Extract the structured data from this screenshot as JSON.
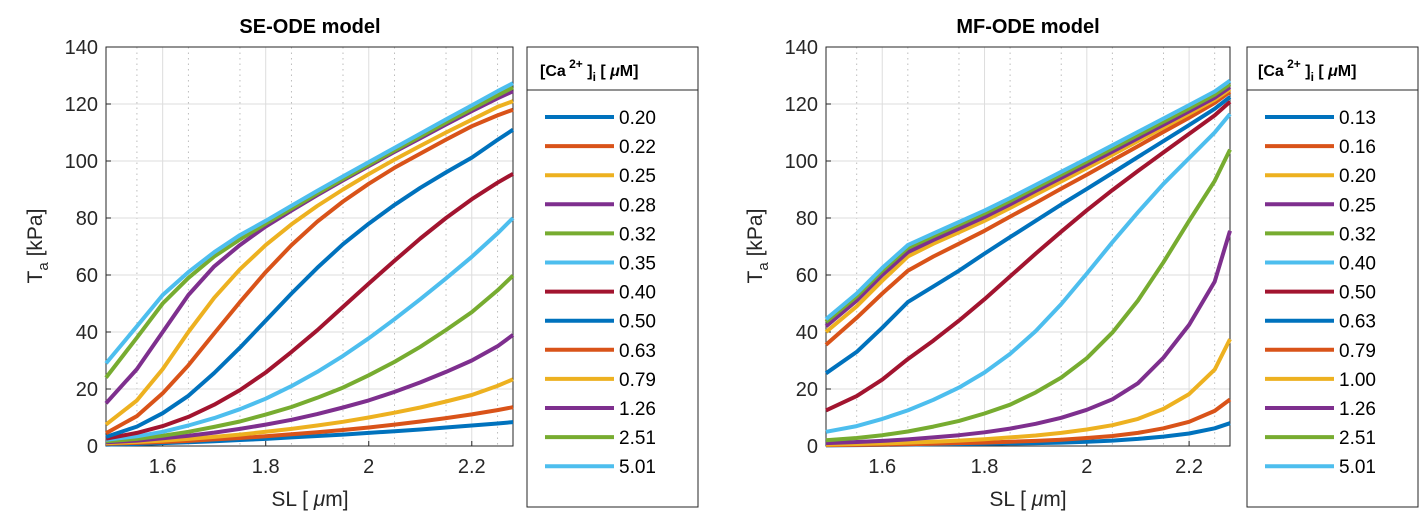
{
  "chart_data": [
    {
      "type": "line",
      "title": "SE-ODE model",
      "xlabel": "SL [ μm]",
      "ylabel": "T_a [kPa]",
      "xlim": [
        1.49,
        2.28
      ],
      "ylim": [
        0,
        140
      ],
      "xticks": [
        "1.6",
        "1.8",
        "2",
        "2.2"
      ],
      "yticks": [
        "0",
        "20",
        "40",
        "60",
        "80",
        "100",
        "120",
        "140"
      ],
      "grid": true,
      "legend_position": "outside-right",
      "legend_title": "[Ca 2+ ]i [ μM]",
      "x": [
        1.49,
        1.55,
        1.6,
        1.65,
        1.7,
        1.75,
        1.8,
        1.85,
        1.9,
        1.95,
        2.0,
        2.05,
        2.1,
        2.15,
        2.2,
        2.25,
        2.28
      ],
      "series": [
        {
          "name": "0.20",
          "color": "#0072BD",
          "values": [
            0.5,
            0.7,
            1,
            1.3,
            1.7,
            2.1,
            2.5,
            3,
            3.5,
            4,
            4.6,
            5.2,
            5.8,
            6.5,
            7.2,
            7.9,
            8.4
          ]
        },
        {
          "name": "0.22",
          "color": "#D95319",
          "values": [
            0.8,
            1.1,
            1.4,
            1.8,
            2.3,
            2.8,
            3.4,
            4.1,
            4.8,
            5.6,
            6.5,
            7.5,
            8.6,
            9.8,
            11.1,
            12.6,
            13.6
          ]
        },
        {
          "name": "0.25",
          "color": "#EDB120",
          "values": [
            1,
            1.4,
            1.9,
            2.5,
            3.2,
            4,
            5,
            6,
            7.2,
            8.5,
            10,
            11.7,
            13.5,
            15.6,
            17.9,
            21.1,
            23.4
          ]
        },
        {
          "name": "0.28",
          "color": "#7E2F8E",
          "values": [
            1.3,
            1.9,
            2.7,
            3.6,
            4.7,
            6,
            7.5,
            9.2,
            11.2,
            13.5,
            16,
            19,
            22.3,
            26,
            30,
            35,
            39
          ]
        },
        {
          "name": "0.32",
          "color": "#77AC30",
          "values": [
            1.7,
            2.5,
            3.6,
            5,
            6.7,
            8.6,
            11,
            13.7,
            16.9,
            20.5,
            24.8,
            29.5,
            34.8,
            40.7,
            47,
            54.6,
            59.8
          ]
        },
        {
          "name": "0.35",
          "color": "#4DBEEE",
          "values": [
            2.2,
            3.4,
            5,
            7.2,
            9.8,
            12.9,
            16.6,
            21,
            26,
            31.6,
            37.8,
            44.5,
            51.5,
            58.8,
            66.4,
            74.6,
            80
          ]
        },
        {
          "name": "0.40",
          "color": "#A2142F",
          "values": [
            2.6,
            4.6,
            7,
            10.2,
            14.5,
            19.6,
            25.8,
            33,
            40.6,
            48.8,
            57,
            65,
            72.8,
            80,
            86.6,
            92.4,
            95.5
          ]
        },
        {
          "name": "0.50",
          "color": "#0072BD",
          "values": [
            3.2,
            6.8,
            11.5,
            17.6,
            25.6,
            34.5,
            44,
            53.5,
            62.5,
            70.8,
            78,
            84.6,
            90.6,
            96,
            101.2,
            107.4,
            111
          ]
        },
        {
          "name": "0.63",
          "color": "#D95319",
          "values": [
            4.5,
            10.5,
            18.5,
            28.3,
            39.5,
            50.5,
            61,
            70.5,
            78.7,
            85.8,
            92,
            97.6,
            102.6,
            107.5,
            112.2,
            116,
            118
          ]
        },
        {
          "name": "0.79",
          "color": "#EDB120",
          "values": [
            7.5,
            16,
            27,
            40,
            52,
            62,
            70.5,
            77.8,
            84.2,
            90,
            95.4,
            100.5,
            105.3,
            110,
            114.5,
            119,
            121
          ]
        },
        {
          "name": "1.26",
          "color": "#7E2F8E",
          "values": [
            15,
            27,
            40,
            53,
            63,
            70.5,
            77,
            82.6,
            88,
            93.2,
            98.2,
            103.2,
            108,
            112.8,
            117.5,
            122,
            124.5
          ]
        },
        {
          "name": "2.51",
          "color": "#77AC30",
          "values": [
            24,
            38,
            50,
            59,
            66.5,
            72.5,
            78,
            83.3,
            88.6,
            93.7,
            98.7,
            103.7,
            108.6,
            113.5,
            118.3,
            123,
            125.8
          ]
        },
        {
          "name": "5.01",
          "color": "#4DBEEE",
          "values": [
            29,
            42,
            53,
            61,
            68,
            74,
            79,
            84.3,
            89.5,
            94.6,
            99.6,
            104.6,
            109.6,
            114.6,
            119.5,
            124.5,
            127.3
          ]
        }
      ]
    },
    {
      "type": "line",
      "title": "MF-ODE model",
      "xlabel": "SL [ μm]",
      "ylabel": "T_a [kPa]",
      "xlim": [
        1.49,
        2.28
      ],
      "ylim": [
        0,
        140
      ],
      "xticks": [
        "1.6",
        "1.8",
        "2",
        "2.2"
      ],
      "yticks": [
        "0",
        "20",
        "40",
        "60",
        "80",
        "100",
        "120",
        "140"
      ],
      "grid": true,
      "legend_position": "outside-right",
      "legend_title": "[Ca 2+ ]i [ μM]",
      "x": [
        1.49,
        1.55,
        1.6,
        1.65,
        1.7,
        1.75,
        1.8,
        1.85,
        1.9,
        1.95,
        2.0,
        2.05,
        2.1,
        2.15,
        2.2,
        2.25,
        2.28
      ],
      "series": [
        {
          "name": "0.13",
          "color": "#0072BD",
          "values": [
            0.2,
            0.3,
            0.4,
            0.5,
            0.6,
            0.7,
            0.8,
            0.9,
            1,
            1.2,
            1.5,
            1.9,
            2.5,
            3.3,
            4.4,
            6.2,
            8
          ]
        },
        {
          "name": "0.16",
          "color": "#D95319",
          "values": [
            0.3,
            0.4,
            0.5,
            0.6,
            0.8,
            1,
            1.2,
            1.5,
            1.8,
            2.2,
            2.8,
            3.5,
            4.6,
            6.2,
            8.5,
            12.3,
            16.3
          ]
        },
        {
          "name": "0.20",
          "color": "#EDB120",
          "values": [
            0.5,
            0.7,
            0.9,
            1.2,
            1.5,
            1.9,
            2.4,
            3,
            3.7,
            4.6,
            5.8,
            7.3,
            9.5,
            13,
            18.2,
            26.8,
            37.5
          ]
        },
        {
          "name": "0.25",
          "color": "#7E2F8E",
          "values": [
            1,
            1.4,
            1.8,
            2.3,
            3,
            3.8,
            4.8,
            6.1,
            7.8,
            9.9,
            12.7,
            16.4,
            22,
            31,
            42.5,
            57.7,
            75.5
          ]
        },
        {
          "name": "0.32",
          "color": "#77AC30",
          "values": [
            2,
            2.8,
            3.8,
            5.1,
            6.8,
            8.8,
            11.4,
            14.5,
            18.8,
            24,
            30.8,
            39.8,
            51,
            64.5,
            79,
            93,
            104
          ]
        },
        {
          "name": "0.40",
          "color": "#4DBEEE",
          "values": [
            5,
            7,
            9.5,
            12.5,
            16.2,
            20.5,
            25.8,
            32.3,
            40.3,
            49.8,
            60.5,
            71.5,
            82,
            92,
            101,
            110,
            116.5
          ]
        },
        {
          "name": "0.50",
          "color": "#A2142F",
          "values": [
            12.5,
            17.5,
            23.3,
            30.5,
            37,
            44,
            51.5,
            59.5,
            67.5,
            75.2,
            82.7,
            89.8,
            96.5,
            103,
            109.5,
            116,
            120.8
          ]
        },
        {
          "name": "0.63",
          "color": "#0072BD",
          "values": [
            25.5,
            33,
            41.5,
            50.5,
            56,
            61.5,
            67.5,
            73.3,
            79,
            84.7,
            90.2,
            95.8,
            101.4,
            107,
            112.6,
            118.3,
            122.5
          ]
        },
        {
          "name": "0.79",
          "color": "#D95319",
          "values": [
            35.5,
            45,
            53.5,
            61.5,
            66.5,
            71,
            75.5,
            80.5,
            85.3,
            90.3,
            95.2,
            100.2,
            105.2,
            110.2,
            115.2,
            120.4,
            124.3
          ]
        },
        {
          "name": "1.00",
          "color": "#EDB120",
          "values": [
            40,
            49,
            58,
            66.5,
            71,
            75,
            79,
            83.5,
            88.2,
            92.8,
            97.5,
            102.2,
            107,
            111.8,
            116.6,
            121.5,
            125.2
          ]
        },
        {
          "name": "1.26",
          "color": "#7E2F8E",
          "values": [
            42,
            51,
            60,
            68,
            72.3,
            76.3,
            80.3,
            84.8,
            89.5,
            94.1,
            98.7,
            103.3,
            108,
            112.7,
            117.4,
            122.2,
            125.9
          ]
        },
        {
          "name": "2.51",
          "color": "#77AC30",
          "values": [
            43.5,
            52.5,
            61.5,
            69.5,
            73.6,
            77.6,
            81.6,
            86,
            90.6,
            95.2,
            99.8,
            104.4,
            109.1,
            113.8,
            118.5,
            123.3,
            127
          ]
        },
        {
          "name": "5.01",
          "color": "#4DBEEE",
          "values": [
            44.5,
            53.5,
            62.5,
            70.5,
            74.6,
            78.6,
            82.6,
            87,
            91.6,
            96.2,
            100.8,
            105.5,
            110.2,
            114.9,
            119.6,
            124.4,
            128.2
          ]
        }
      ]
    }
  ]
}
